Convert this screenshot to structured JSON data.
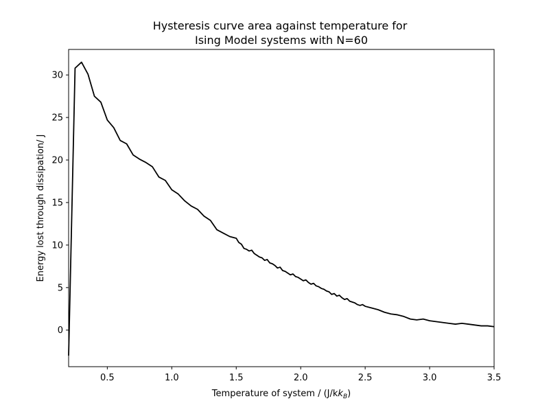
{
  "chart_data": {
    "type": "line",
    "title": [
      "Hysteresis curve area against temperature for",
      "Ising Model systems with N=60"
    ],
    "xlabel": "Temperature of system / (J/k",
    "xlabel_subscript": "B",
    "xlabel_suffix": ")",
    "ylabel": "Energy lost through dissipation/ J",
    "xlim": [
      0.2,
      3.5
    ],
    "ylim": [
      -4.3,
      33.0
    ],
    "xticks": [
      "0.5",
      "1.0",
      "1.5",
      "2.0",
      "2.5",
      "3.0",
      "3.5"
    ],
    "yticks": [
      "0",
      "5",
      "10",
      "15",
      "20",
      "25",
      "30"
    ],
    "grid": false,
    "line_color": "#000000",
    "series": [
      {
        "x": [
          0.2,
          0.25,
          0.3,
          0.35,
          0.4,
          0.45,
          0.5,
          0.55,
          0.6,
          0.65,
          0.7,
          0.75,
          0.8,
          0.85,
          0.9,
          0.95,
          1.0,
          1.05,
          1.1,
          1.15,
          1.2,
          1.25,
          1.3,
          1.35,
          1.4,
          1.45,
          1.5,
          1.52,
          1.54,
          1.56,
          1.58,
          1.6,
          1.62,
          1.64,
          1.66,
          1.68,
          1.7,
          1.72,
          1.74,
          1.76,
          1.78,
          1.8,
          1.82,
          1.84,
          1.86,
          1.88,
          1.9,
          1.92,
          1.94,
          1.96,
          1.98,
          2.0,
          2.02,
          2.04,
          2.06,
          2.08,
          2.1,
          2.12,
          2.14,
          2.16,
          2.18,
          2.2,
          2.22,
          2.24,
          2.26,
          2.28,
          2.3,
          2.32,
          2.34,
          2.36,
          2.38,
          2.4,
          2.42,
          2.44,
          2.46,
          2.48,
          2.5,
          2.55,
          2.6,
          2.65,
          2.7,
          2.75,
          2.8,
          2.85,
          2.9,
          2.95,
          3.0,
          3.05,
          3.1,
          3.15,
          3.2,
          3.25,
          3.3,
          3.35,
          3.4,
          3.45,
          3.5
        ],
        "y": [
          -3.0,
          30.8,
          31.5,
          30.1,
          27.5,
          26.8,
          24.7,
          23.8,
          22.3,
          21.9,
          20.6,
          20.1,
          19.7,
          19.2,
          18.0,
          17.6,
          16.5,
          16.0,
          15.2,
          14.6,
          14.2,
          13.4,
          12.9,
          11.8,
          11.4,
          11.0,
          10.8,
          10.3,
          10.1,
          9.6,
          9.5,
          9.3,
          9.4,
          9.0,
          8.8,
          8.6,
          8.5,
          8.2,
          8.3,
          7.9,
          7.8,
          7.6,
          7.3,
          7.4,
          7.0,
          6.9,
          6.7,
          6.5,
          6.6,
          6.3,
          6.2,
          6.0,
          5.8,
          5.9,
          5.6,
          5.4,
          5.5,
          5.2,
          5.1,
          4.9,
          4.8,
          4.6,
          4.5,
          4.2,
          4.3,
          4.0,
          4.1,
          3.8,
          3.6,
          3.7,
          3.4,
          3.3,
          3.2,
          3.0,
          2.9,
          3.0,
          2.8,
          2.6,
          2.4,
          2.1,
          1.9,
          1.8,
          1.6,
          1.3,
          1.2,
          1.3,
          1.1,
          1.0,
          0.9,
          0.8,
          0.7,
          0.8,
          0.7,
          0.6,
          0.5,
          0.5,
          0.4
        ]
      }
    ]
  }
}
